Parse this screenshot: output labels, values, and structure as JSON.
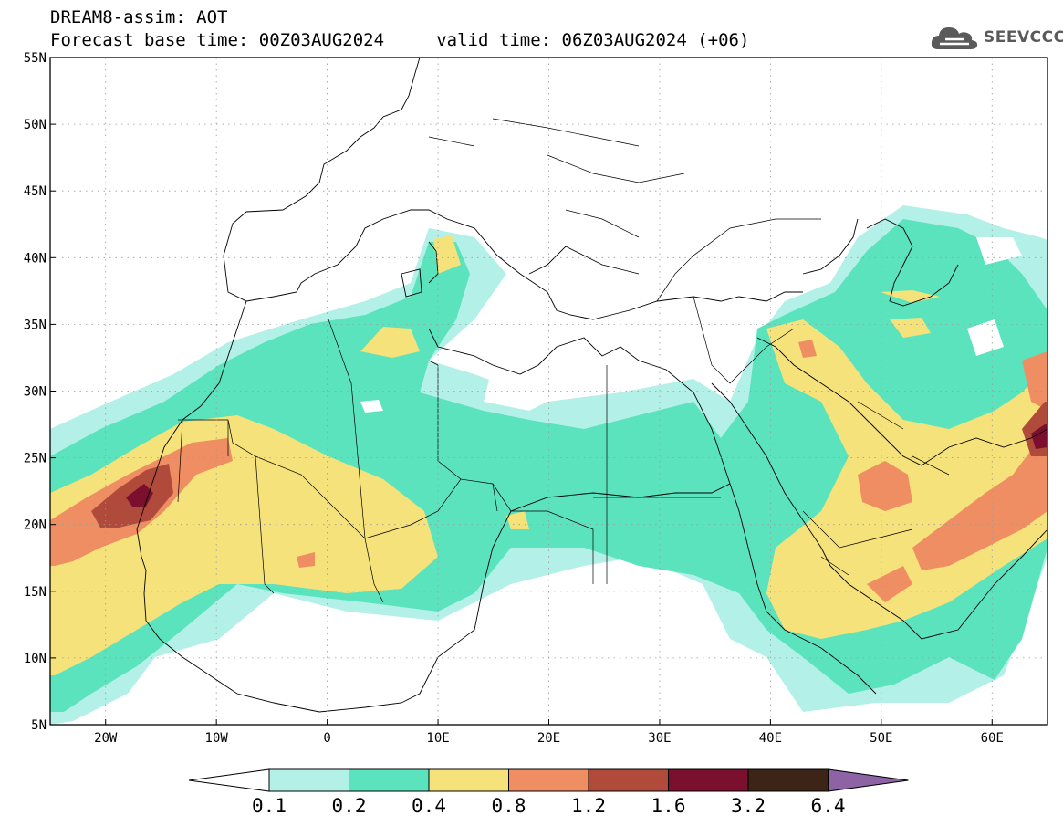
{
  "header": {
    "title": "DREAM8-assim: AOT",
    "line2": "Forecast base time: 00Z03AUG2024     valid time: 06Z03AUG2024 (+06)"
  },
  "logo": {
    "text": "SEEVCCC",
    "icon": "cloud-icon"
  },
  "map": {
    "lon_range": [
      -25,
      65
    ],
    "lat_range": [
      5,
      55
    ],
    "lat_ticks": [
      "5N",
      "10N",
      "15N",
      "20N",
      "25N",
      "30N",
      "35N",
      "40N",
      "45N",
      "50N",
      "55N"
    ],
    "lon_ticks": [
      "20W",
      "10W",
      "0",
      "10E",
      "20E",
      "30E",
      "40E",
      "50E",
      "60E"
    ],
    "grid": "dotted"
  },
  "legend": {
    "bins": [
      {
        "color": "#b3f0e8"
      },
      {
        "color": "#5be3bd"
      },
      {
        "color": "#f5e27a"
      },
      {
        "color": "#ee8e62"
      },
      {
        "color": "#b04a3a"
      },
      {
        "color": "#7a0f2e"
      },
      {
        "color": "#3c2416"
      }
    ],
    "over_color": "#8d63a6",
    "under_color": "#ffffff",
    "labels": [
      "0.1",
      "0.2",
      "0.4",
      "0.8",
      "1.2",
      "1.6",
      "3.2",
      "6.4"
    ]
  }
}
